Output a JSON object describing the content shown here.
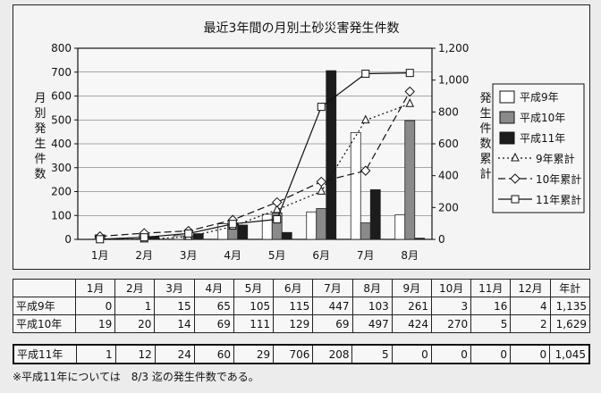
{
  "chart_data": {
    "type": "bar",
    "title": "最近3年間の月別土砂災害発生件数",
    "categories": [
      "1月",
      "2月",
      "3月",
      "4月",
      "5月",
      "6月",
      "7月",
      "8月"
    ],
    "ylabel_left": "月別発生件数",
    "ylabel_right": "発生件数累計",
    "ylim_left": [
      0,
      800
    ],
    "ylim_right": [
      0,
      1200
    ],
    "yticks_left": [
      "0",
      "100",
      "200",
      "300",
      "400",
      "500",
      "600",
      "700",
      "800"
    ],
    "yticks_right": [
      "0",
      "200",
      "400",
      "600",
      "800",
      "1,000",
      "1,200"
    ],
    "grid": true,
    "legend_position": "right",
    "bar_series": [
      {
        "name": "平成9年",
        "values": [
          0,
          1,
          15,
          65,
          105,
          115,
          447,
          103
        ],
        "color": "#ffffff"
      },
      {
        "name": "平成10年",
        "values": [
          19,
          20,
          14,
          69,
          111,
          129,
          69,
          497
        ],
        "color": "#8a8a8a"
      },
      {
        "name": "平成11年",
        "values": [
          1,
          12,
          24,
          60,
          29,
          706,
          208,
          5
        ],
        "color": "#1c1c1c"
      }
    ],
    "line_series": [
      {
        "name": "9年累計",
        "marker": "triangle",
        "dash": "2,3",
        "values": [
          0,
          1,
          16,
          81,
          186,
          301,
          748,
          851
        ]
      },
      {
        "name": "10年累計",
        "marker": "diamond",
        "dash": "8,4",
        "values": [
          19,
          39,
          53,
          122,
          233,
          362,
          431,
          928
        ]
      },
      {
        "name": "11年累計",
        "marker": "square",
        "dash": "",
        "values": [
          1,
          13,
          37,
          97,
          126,
          832,
          1040,
          1045
        ]
      }
    ]
  },
  "table": {
    "months": [
      "1月",
      "2月",
      "3月",
      "4月",
      "5月",
      "6月",
      "7月",
      "8月",
      "9月",
      "10月",
      "11月",
      "12月"
    ],
    "total_label": "年計",
    "rows": [
      {
        "label": "平成9年",
        "values": [
          "0",
          "1",
          "15",
          "65",
          "105",
          "115",
          "447",
          "103",
          "261",
          "3",
          "16",
          "4"
        ],
        "total": "1,135"
      },
      {
        "label": "平成10年",
        "values": [
          "19",
          "20",
          "14",
          "69",
          "111",
          "129",
          "69",
          "497",
          "424",
          "270",
          "5",
          "2"
        ],
        "total": "1,629"
      }
    ],
    "row_h11": {
      "label": "平成11年",
      "values": [
        "1",
        "12",
        "24",
        "60",
        "29",
        "706",
        "208",
        "5",
        "0",
        "0",
        "0",
        "0"
      ],
      "total": "1,045"
    }
  },
  "footnote": "※平成11年については　8/3 迄の発生件数である。"
}
